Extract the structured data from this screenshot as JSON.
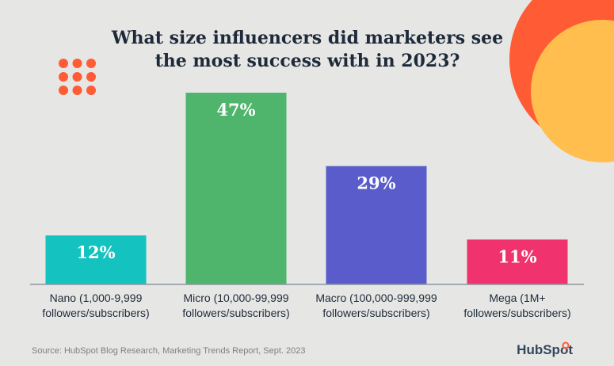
{
  "chart_data": {
    "type": "bar",
    "title_lines": [
      "What size influencers did marketers see",
      "the most success with in 2023?"
    ],
    "categories": [
      [
        "Nano (1,000-9,999",
        "followers/subscribers)"
      ],
      [
        "Micro (10,000-99,999",
        "followers/subscribers)"
      ],
      [
        "Macro (100,000-999,999",
        "followers/subscribers)"
      ],
      [
        "Mega (1M+",
        "followers/subscribers)"
      ]
    ],
    "values": [
      12,
      47,
      29,
      11
    ],
    "value_labels": [
      "12%",
      "47%",
      "29%",
      "11%"
    ],
    "colors": [
      "#14c3c0",
      "#4fb46c",
      "#5a5ccb",
      "#f0336f"
    ],
    "ylim": [
      0,
      47
    ],
    "grid": false,
    "legend": "none"
  },
  "footer": {
    "source": "Source: HubSpot Blog Research, Marketing Trends Report, Sept. 2023",
    "brand": "HubSpot"
  },
  "decor": {
    "dots_color": "#ff5c35",
    "circle_outer_color": "#ff5c35",
    "circle_inner_color": "#ffbe4d",
    "dots_icon": "dot-grid-icon",
    "brand_icon": "hubspot-logo-icon"
  }
}
